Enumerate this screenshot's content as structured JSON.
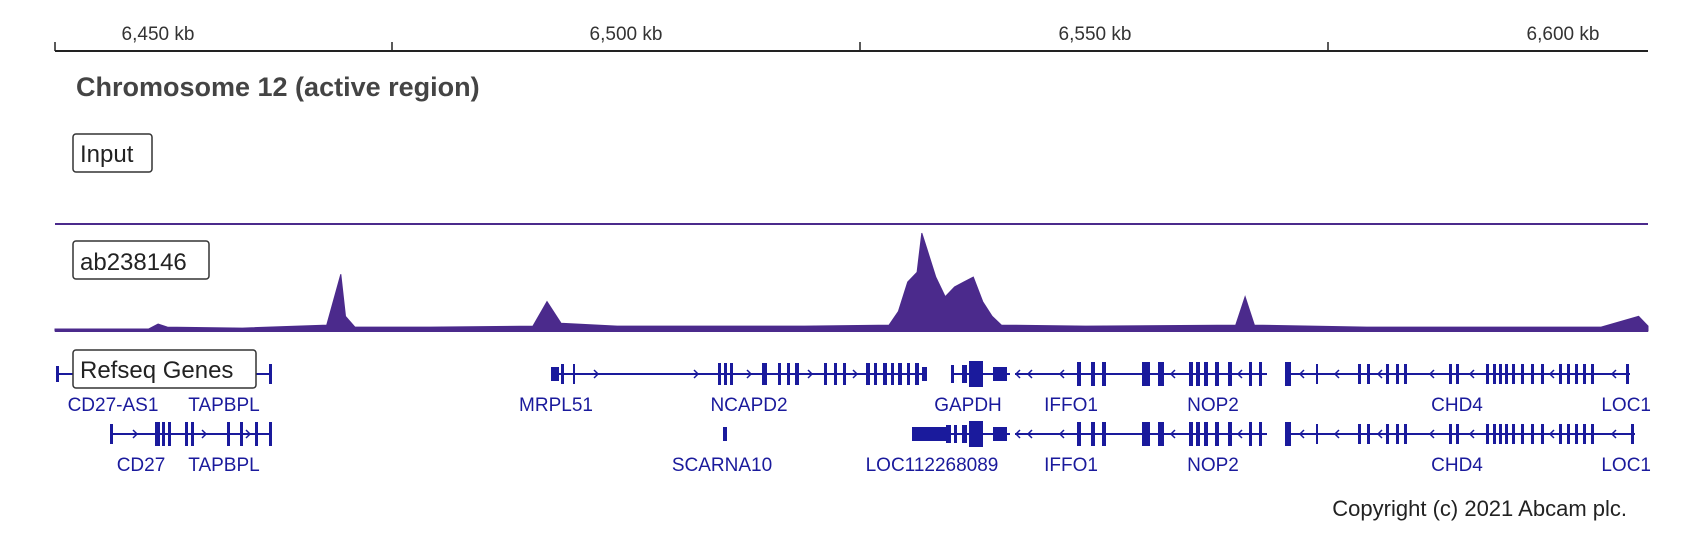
{
  "region": {
    "title": "Chromosome 12 (active region)"
  },
  "ruler": {
    "ticks": [
      "6,450 kb",
      "6,500 kb",
      "6,550 kb",
      "6,600 kb"
    ]
  },
  "tracks": {
    "input_label": "Input",
    "chip_label": "ab238146",
    "genes_label": "Refseq Genes"
  },
  "gene_labels": {
    "row1": [
      "CD27-AS1",
      "TAPBPL",
      "MRPL51",
      "NCAPD2",
      "GAPDH",
      "IFFO1",
      "NOP2",
      "CHD4",
      "LOC1"
    ],
    "row2": [
      "CD27",
      "TAPBPL",
      "SCARNA10",
      "LOC112268089",
      "IFFO1",
      "NOP2",
      "CHD4",
      "LOC1"
    ]
  },
  "copyright": "Copyright (c) 2021 Abcam plc.",
  "colors": {
    "signal": "#4b2a8c",
    "gene": "#1a1a9c",
    "axis": "#222222"
  },
  "chart_data": {
    "type": "area",
    "xlabel": "",
    "ylabel": "",
    "x_unit": "kb",
    "xlim": [
      6440,
      6610
    ],
    "series": [
      {
        "name": "Input",
        "x": [
          6440,
          6610
        ],
        "values": [
          0,
          0
        ]
      },
      {
        "name": "ab238146",
        "x": [
          6440,
          6450,
          6451,
          6452,
          6460,
          6469,
          6470.5,
          6471,
          6472,
          6480,
          6491,
          6492.5,
          6494,
          6500,
          6520,
          6529,
          6530,
          6531,
          6532,
          6532.5,
          6533,
          6534,
          6535,
          6536,
          6537,
          6538,
          6539,
          6540,
          6541,
          6550,
          6566,
          6567,
          6568,
          6580,
          6605,
          6609,
          6610
        ],
        "values": [
          0.02,
          0.02,
          0.07,
          0.04,
          0.03,
          0.06,
          0.58,
          0.15,
          0.04,
          0.04,
          0.05,
          0.3,
          0.08,
          0.05,
          0.05,
          0.06,
          0.2,
          0.5,
          0.6,
          1.0,
          0.85,
          0.55,
          0.35,
          0.45,
          0.5,
          0.55,
          0.3,
          0.15,
          0.06,
          0.05,
          0.06,
          0.35,
          0.06,
          0.04,
          0.04,
          0.15,
          0.05
        ]
      }
    ]
  }
}
